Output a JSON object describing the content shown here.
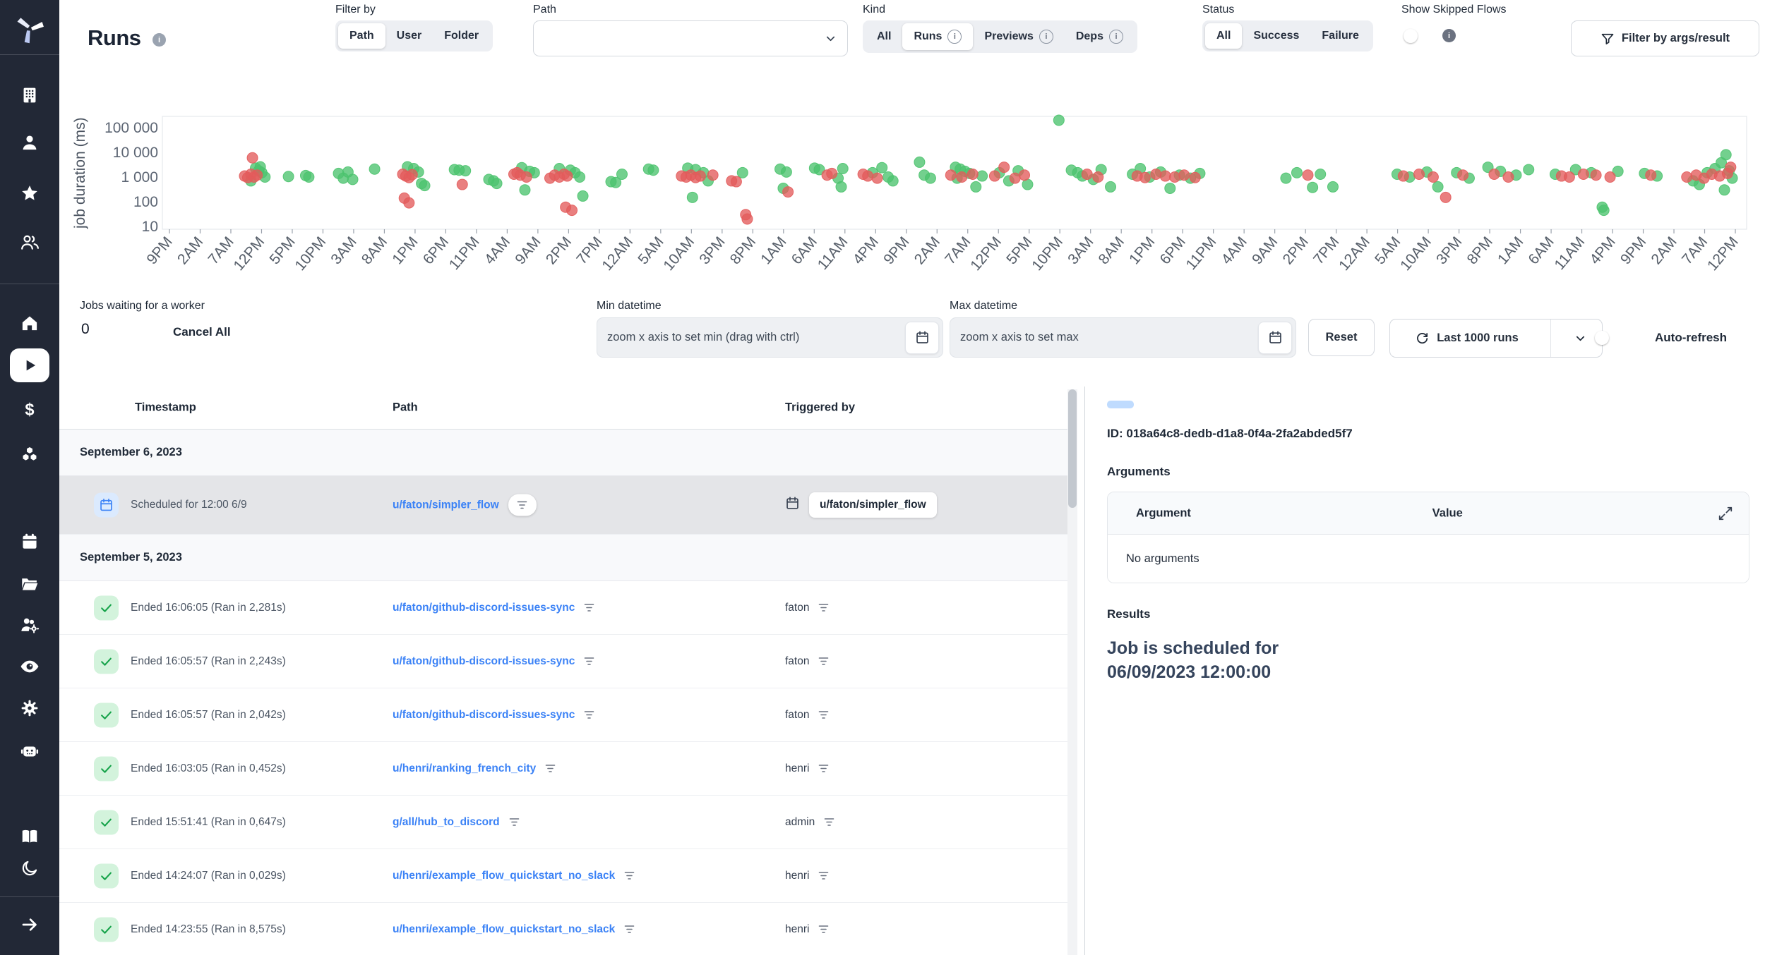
{
  "colors": {
    "sidebar_bg": "#222836",
    "accent_blue": "#3b82f6",
    "toggle_on": "#2563eb",
    "success_green": "#4cc36e",
    "failure_red": "#e35b5b",
    "check_bg": "#d3f3dc",
    "selected_row_bg": "#e4e5e8",
    "skeleton_blue": "#bfdbfe"
  },
  "sidebar": {
    "icons": [
      "windmill-logo",
      "building",
      "user",
      "star",
      "user-group",
      "home",
      "play-runs",
      "dollar-variables",
      "cubes-resources",
      "calendar-schedules",
      "folder",
      "group-gear",
      "eye-audit",
      "gear-settings",
      "robot-workers",
      "book-docs",
      "moon-dark-mode",
      "arrow-collapse"
    ],
    "active_item": "runs"
  },
  "header": {
    "title": "Runs",
    "filter_by": {
      "label": "Filter by",
      "options": [
        "Path",
        "User",
        "Folder"
      ],
      "selected": "Path"
    },
    "path_select": {
      "label": "Path",
      "value": ""
    },
    "kind": {
      "label": "Kind",
      "options": [
        {
          "label": "All",
          "info": false
        },
        {
          "label": "Runs",
          "info": true
        },
        {
          "label": "Previews",
          "info": true
        },
        {
          "label": "Deps",
          "info": true
        }
      ],
      "selected": "Runs"
    },
    "status": {
      "label": "Status",
      "options": [
        "All",
        "Success",
        "Failure"
      ],
      "selected": "All"
    },
    "show_skipped": {
      "label": "Show Skipped Flows",
      "enabled": false
    },
    "filter_args_button": "Filter by args/result"
  },
  "chart_data": {
    "type": "scatter",
    "title": "",
    "ylabel": "job duration (ms)",
    "y_scale": "log",
    "ylim": [
      10,
      100000
    ],
    "y_ticks": [
      100000,
      10000,
      1000,
      100,
      10
    ],
    "y_tick_labels": [
      "100 000",
      "10 000",
      "1 000",
      "100",
      "10"
    ],
    "x_unit": "percent_of_time_axis",
    "x_ticks": [
      "9PM",
      "2AM",
      "7AM",
      "12PM",
      "5PM",
      "10PM",
      "3AM",
      "8AM",
      "1PM",
      "6PM",
      "11PM",
      "4AM",
      "9AM",
      "2PM",
      "7PM",
      "12AM",
      "5AM",
      "10AM",
      "3PM",
      "8PM",
      "1AM",
      "6AM",
      "11AM",
      "4PM",
      "9PM",
      "2AM",
      "7AM",
      "12PM",
      "5PM",
      "10PM",
      "3AM",
      "8AM",
      "1PM",
      "6PM",
      "11PM",
      "4AM",
      "9AM",
      "2PM",
      "7PM",
      "12AM",
      "5AM",
      "10AM",
      "3PM",
      "8PM",
      "1AM",
      "6AM",
      "11AM",
      "4PM",
      "9PM",
      "2AM",
      "7AM",
      "12PM"
    ],
    "legend": "off",
    "grid": "off",
    "series": [
      {
        "name": "success",
        "color": "#4cc36e",
        "points": [
          [
            5.2,
            700
          ],
          [
            5.5,
            2300
          ],
          [
            5.7,
            1800
          ],
          [
            5.9,
            1500
          ],
          [
            6.1,
            1000
          ],
          [
            5.8,
            2600
          ],
          [
            7.6,
            1050
          ],
          [
            8.7,
            1150
          ],
          [
            8.9,
            1000
          ],
          [
            10.8,
            1400
          ],
          [
            11.1,
            900
          ],
          [
            11.4,
            1600
          ],
          [
            11.7,
            800
          ],
          [
            13.1,
            2100
          ],
          [
            15.2,
            2600
          ],
          [
            15.6,
            2200
          ],
          [
            15.9,
            1600
          ],
          [
            16.1,
            550
          ],
          [
            16.3,
            450
          ],
          [
            18.2,
            2000
          ],
          [
            18.5,
            1900
          ],
          [
            18.9,
            1800
          ],
          [
            20.4,
            800
          ],
          [
            20.7,
            700
          ],
          [
            20.9,
            550
          ],
          [
            22.5,
            2400
          ],
          [
            23.0,
            1700
          ],
          [
            22.7,
            300
          ],
          [
            23.3,
            1500
          ],
          [
            24.9,
            2200
          ],
          [
            25.6,
            1900
          ],
          [
            25.9,
            1500
          ],
          [
            26.2,
            1000
          ],
          [
            26.4,
            170
          ],
          [
            28.2,
            650
          ],
          [
            28.5,
            600
          ],
          [
            28.9,
            1300
          ],
          [
            30.6,
            2100
          ],
          [
            30.9,
            1900
          ],
          [
            33.1,
            2300
          ],
          [
            33.6,
            2000
          ],
          [
            34.1,
            1500
          ],
          [
            34.4,
            700
          ],
          [
            33.4,
            150
          ],
          [
            36.6,
            1500
          ],
          [
            39.0,
            2100
          ],
          [
            39.2,
            350
          ],
          [
            39.4,
            1600
          ],
          [
            41.2,
            2300
          ],
          [
            41.5,
            2000
          ],
          [
            42.7,
            900
          ],
          [
            43.0,
            2200
          ],
          [
            42.9,
            400
          ],
          [
            44.9,
            1500
          ],
          [
            45.5,
            2400
          ],
          [
            45.9,
            1000
          ],
          [
            46.2,
            700
          ],
          [
            47.9,
            4000
          ],
          [
            48.2,
            1200
          ],
          [
            48.6,
            900
          ],
          [
            50.2,
            2500
          ],
          [
            50.5,
            2100
          ],
          [
            50.8,
            1700
          ],
          [
            51.1,
            1400
          ],
          [
            50.3,
            900
          ],
          [
            51.5,
            400
          ],
          [
            51.9,
            1100
          ],
          [
            53.0,
            1500
          ],
          [
            53.6,
            700
          ],
          [
            54.2,
            1800
          ],
          [
            54.8,
            500
          ],
          [
            56.8,
            200000
          ],
          [
            57.6,
            1900
          ],
          [
            58.0,
            1500
          ],
          [
            58.3,
            1100
          ],
          [
            59.0,
            800
          ],
          [
            59.5,
            2000
          ],
          [
            60.1,
            400
          ],
          [
            61.5,
            1300
          ],
          [
            62.0,
            2200
          ],
          [
            62.6,
            1000
          ],
          [
            63.3,
            1600
          ],
          [
            63.9,
            350
          ],
          [
            64.5,
            1200
          ],
          [
            65.2,
            900
          ],
          [
            65.8,
            1400
          ],
          [
            71.3,
            900
          ],
          [
            72.0,
            1500
          ],
          [
            73.0,
            380
          ],
          [
            73.5,
            1300
          ],
          [
            74.3,
            400
          ],
          [
            78.4,
            1300
          ],
          [
            79.2,
            1000
          ],
          [
            80.3,
            1600
          ],
          [
            81.0,
            400
          ],
          [
            82.2,
            1500
          ],
          [
            83.0,
            900
          ],
          [
            84.2,
            2500
          ],
          [
            85.0,
            1700
          ],
          [
            86.0,
            1200
          ],
          [
            86.8,
            2000
          ],
          [
            88.5,
            1300
          ],
          [
            89.8,
            2000
          ],
          [
            90.8,
            1500
          ],
          [
            91.5,
            60
          ],
          [
            91.6,
            45
          ],
          [
            92.5,
            1700
          ],
          [
            94.2,
            1400
          ],
          [
            95.0,
            1100
          ],
          [
            97.3,
            700
          ],
          [
            97.7,
            500
          ],
          [
            98.2,
            1500
          ],
          [
            98.7,
            2200
          ],
          [
            99.1,
            3800
          ],
          [
            99.4,
            8000
          ],
          [
            99.6,
            1800
          ],
          [
            99.8,
            900
          ],
          [
            99.3,
            300
          ]
        ]
      },
      {
        "name": "failure",
        "color": "#e35b5b",
        "points": [
          [
            4.8,
            1100
          ],
          [
            5.0,
            950
          ],
          [
            5.2,
            1300
          ],
          [
            5.4,
            1000
          ],
          [
            5.6,
            1200
          ],
          [
            5.3,
            6000
          ],
          [
            14.9,
            1300
          ],
          [
            15.1,
            1100
          ],
          [
            15.3,
            950
          ],
          [
            15.5,
            1250
          ],
          [
            15.0,
            140
          ],
          [
            15.3,
            90
          ],
          [
            18.7,
            500
          ],
          [
            22.0,
            1300
          ],
          [
            22.2,
            1500
          ],
          [
            22.4,
            1200
          ],
          [
            22.8,
            1000
          ],
          [
            24.3,
            900
          ],
          [
            24.6,
            1200
          ],
          [
            24.9,
            1000
          ],
          [
            25.2,
            1300
          ],
          [
            25.4,
            1100
          ],
          [
            25.3,
            60
          ],
          [
            25.7,
            45
          ],
          [
            32.7,
            1100
          ],
          [
            33.0,
            1000
          ],
          [
            33.3,
            1200
          ],
          [
            33.6,
            950
          ],
          [
            33.9,
            1100
          ],
          [
            34.7,
            1200
          ],
          [
            35.9,
            700
          ],
          [
            36.2,
            650
          ],
          [
            36.8,
            30
          ],
          [
            36.9,
            20
          ],
          [
            39.5,
            250
          ],
          [
            42.0,
            1200
          ],
          [
            42.3,
            1400
          ],
          [
            44.3,
            1300
          ],
          [
            44.6,
            1100
          ],
          [
            45.2,
            900
          ],
          [
            49.9,
            1200
          ],
          [
            50.6,
            1000
          ],
          [
            51.3,
            1300
          ],
          [
            52.7,
            1100
          ],
          [
            53.3,
            2500
          ],
          [
            54.0,
            900
          ],
          [
            54.6,
            1200
          ],
          [
            58.6,
            1300
          ],
          [
            59.3,
            1000
          ],
          [
            61.8,
            1100
          ],
          [
            62.3,
            950
          ],
          [
            63.0,
            1300
          ],
          [
            63.6,
            1100
          ],
          [
            64.2,
            1000
          ],
          [
            64.8,
            1200
          ],
          [
            65.5,
            950
          ],
          [
            72.7,
            1200
          ],
          [
            78.8,
            1100
          ],
          [
            79.8,
            1300
          ],
          [
            80.7,
            1000
          ],
          [
            81.5,
            150
          ],
          [
            82.6,
            1200
          ],
          [
            84.6,
            1300
          ],
          [
            85.5,
            1000
          ],
          [
            88.9,
            1100
          ],
          [
            89.4,
            1000
          ],
          [
            90.3,
            1300
          ],
          [
            91.1,
            1200
          ],
          [
            92.0,
            1000
          ],
          [
            94.6,
            1200
          ],
          [
            96.9,
            1000
          ],
          [
            97.5,
            1200
          ],
          [
            98.0,
            900
          ],
          [
            98.5,
            1300
          ],
          [
            99.0,
            1100
          ],
          [
            99.5,
            1400
          ],
          [
            99.7,
            2500
          ]
        ]
      }
    ]
  },
  "controls": {
    "jobs_waiting": {
      "label": "Jobs waiting for a worker",
      "count": "0",
      "cancel_all": "Cancel All"
    },
    "min_datetime": {
      "label": "Min datetime",
      "placeholder": "zoom x axis to set min (drag with ctrl)"
    },
    "max_datetime": {
      "label": "Max datetime",
      "placeholder": "zoom x axis to set max"
    },
    "reset": "Reset",
    "runs_select": "Last 1000 runs",
    "auto_refresh": {
      "label": "Auto-refresh",
      "enabled": true
    }
  },
  "table": {
    "columns": [
      "Timestamp",
      "Path",
      "Triggered by"
    ],
    "rows": [
      {
        "type": "date",
        "label": "September 6, 2023"
      },
      {
        "type": "scheduled",
        "selected": true,
        "timestamp": "Scheduled for 12:00 6/9",
        "path": "u/faton/simpler_flow",
        "triggered_by": "u/faton/simpler_flow"
      },
      {
        "type": "date",
        "label": "September 5, 2023"
      },
      {
        "type": "success",
        "timestamp": "Ended 16:06:05 (Ran in 2,281s)",
        "path": "u/faton/github-discord-issues-sync",
        "triggered_by": "faton"
      },
      {
        "type": "success",
        "timestamp": "Ended 16:05:57 (Ran in 2,243s)",
        "path": "u/faton/github-discord-issues-sync",
        "triggered_by": "faton"
      },
      {
        "type": "success",
        "timestamp": "Ended 16:05:57 (Ran in 2,042s)",
        "path": "u/faton/github-discord-issues-sync",
        "triggered_by": "faton"
      },
      {
        "type": "success",
        "timestamp": "Ended 16:03:05 (Ran in 0,452s)",
        "path": "u/henri/ranking_french_city",
        "triggered_by": "henri"
      },
      {
        "type": "success",
        "timestamp": "Ended 15:51:41 (Ran in 0,647s)",
        "path": "g/all/hub_to_discord",
        "triggered_by": "admin"
      },
      {
        "type": "success",
        "timestamp": "Ended 14:24:07 (Ran in 0,029s)",
        "path": "u/henri/example_flow_quickstart_no_slack",
        "triggered_by": "henri"
      },
      {
        "type": "success",
        "timestamp": "Ended 14:23:55 (Ran in 8,575s)",
        "path": "u/henri/example_flow_quickstart_no_slack",
        "triggered_by": "henri"
      }
    ]
  },
  "detail": {
    "id": "ID: 018a64c8-dedb-d1a8-0f4a-2fa2abded5f7",
    "arguments_title": "Arguments",
    "args_columns": [
      "Argument",
      "Value"
    ],
    "args_empty": "No arguments",
    "results_title": "Results",
    "result_text": "Job is scheduled for 06/09/2023 12:00:00"
  }
}
